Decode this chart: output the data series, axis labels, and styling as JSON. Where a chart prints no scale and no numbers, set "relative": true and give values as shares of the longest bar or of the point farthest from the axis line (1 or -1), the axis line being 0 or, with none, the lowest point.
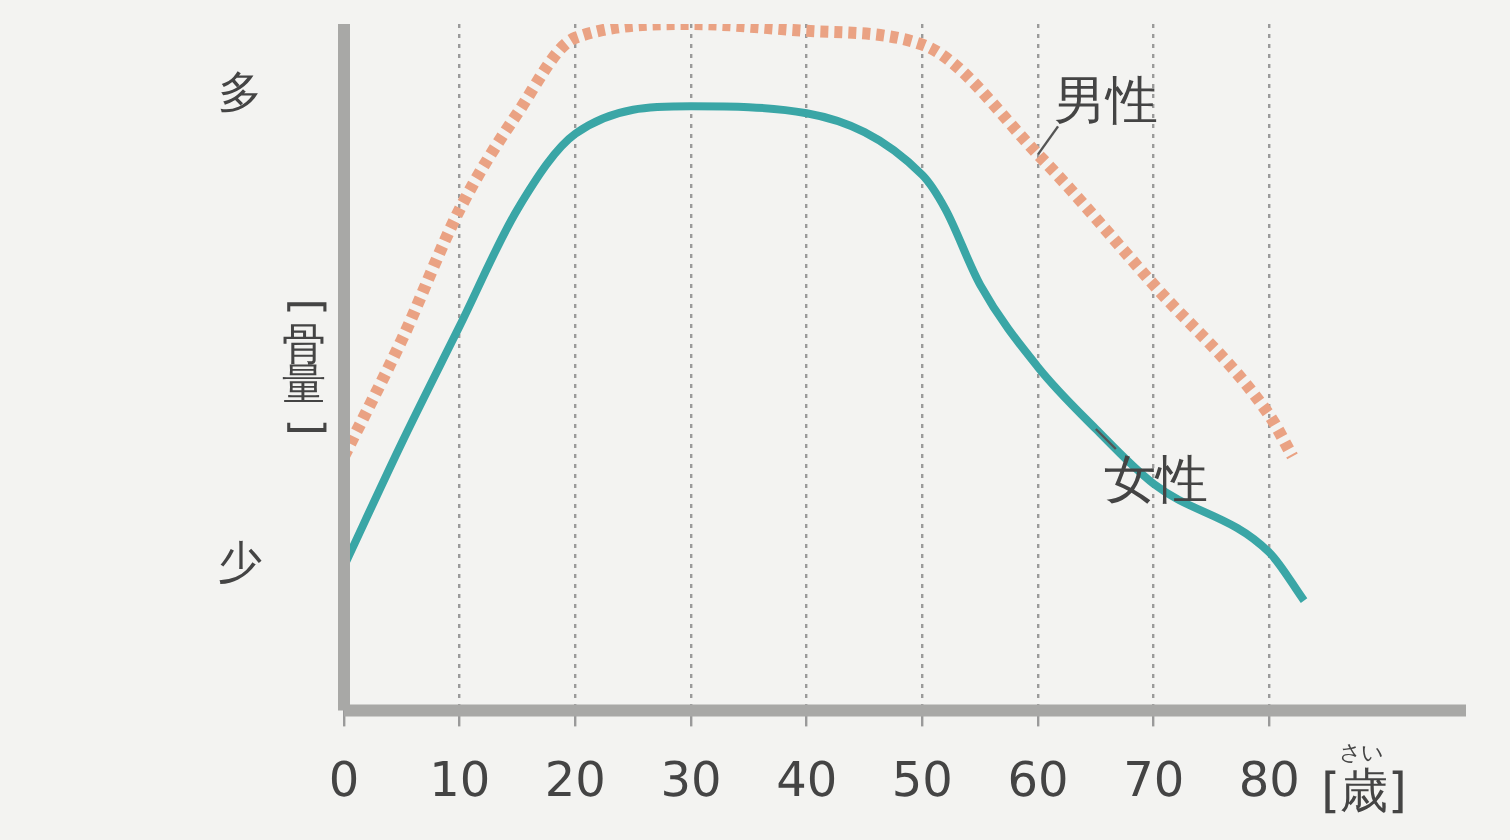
{
  "chart_data": {
    "type": "line",
    "relative": true,
    "ylabel": "[骨量]",
    "xlabel": "[歳]",
    "annotations": [
      "多",
      "少",
      "さい"
    ],
    "xlim": [
      0,
      97
    ],
    "xticks": [
      0,
      10,
      20,
      30,
      40,
      50,
      60,
      70,
      80
    ],
    "grid": "x",
    "legend": false,
    "marker": "none",
    "series": [
      {
        "name": "男性",
        "color": "#eaa283",
        "line_style": "dotted",
        "x": [
          0,
          5,
          10,
          15,
          20,
          30,
          40,
          50,
          60,
          70,
          80,
          82
        ],
        "values": [
          0.37,
          0.54,
          0.73,
          0.87,
          0.98,
          1,
          0.99,
          0.97,
          0.81,
          0.62,
          0.43,
          0.37
        ]
      },
      {
        "name": "女性",
        "color": "#3aa6a6",
        "line_style": "solid",
        "x": [
          0,
          5,
          10,
          15,
          20,
          30,
          40,
          50,
          52,
          55,
          60,
          65,
          70,
          80,
          83
        ],
        "values": [
          0.21,
          0.39,
          0.56,
          0.73,
          0.84,
          0.88,
          0.87,
          0.78,
          0.73,
          0.62,
          0.5,
          0.41,
          0.33,
          0.23,
          0.16
        ]
      }
    ]
  }
}
